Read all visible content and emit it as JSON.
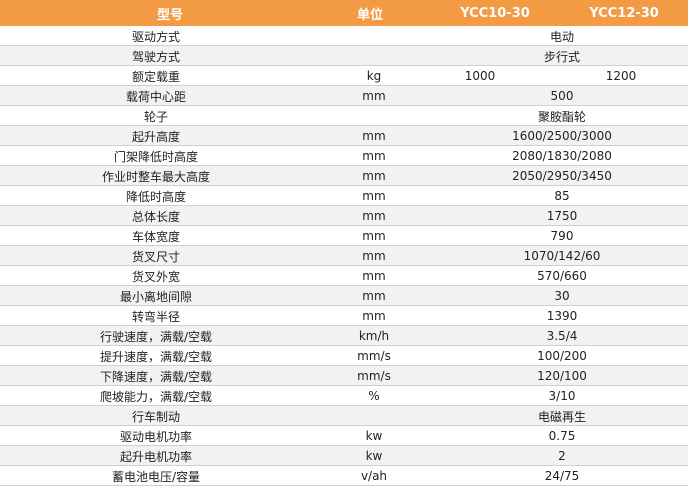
{
  "header": {
    "name_label": "型号",
    "unit_label": "单位",
    "model_a": "YCC10-30",
    "model_b": "YCC12-30"
  },
  "rows": [
    {
      "name": "驱动方式",
      "unit": "",
      "value": "电动"
    },
    {
      "name": "驾驶方式",
      "unit": "",
      "value": "步行式"
    },
    {
      "name": "额定载重",
      "unit": "kg",
      "value_a": "1000",
      "value_b": "1200"
    },
    {
      "name": "载荷中心距",
      "unit": "mm",
      "value": "500"
    },
    {
      "name": "轮子",
      "unit": "",
      "value": "聚胺酯轮"
    },
    {
      "name": "起升高度",
      "unit": "mm",
      "value": "1600/2500/3000"
    },
    {
      "name": "门架降低时高度",
      "unit": "mm",
      "value": "2080/1830/2080"
    },
    {
      "name": "作业时整车最大高度",
      "unit": "mm",
      "value": "2050/2950/3450"
    },
    {
      "name": "降低时高度",
      "unit": "mm",
      "value": "85"
    },
    {
      "name": "总体长度",
      "unit": "mm",
      "value": "1750"
    },
    {
      "name": "车体宽度",
      "unit": "mm",
      "value": "790"
    },
    {
      "name": "货叉尺寸",
      "unit": "mm",
      "value": "1070/142/60"
    },
    {
      "name": "货叉外宽",
      "unit": "mm",
      "value": "570/660"
    },
    {
      "name": "最小离地间隙",
      "unit": "mm",
      "value": "30"
    },
    {
      "name": "转弯半径",
      "unit": "mm",
      "value": "1390"
    },
    {
      "name": "行驶速度，满载/空载",
      "unit": "km/h",
      "value": "3.5/4"
    },
    {
      "name": "提升速度，满载/空载",
      "unit": "mm/s",
      "value": "100/200"
    },
    {
      "name": "下降速度，满载/空载",
      "unit": "mm/s",
      "value": "120/100"
    },
    {
      "name": "爬坡能力，满载/空载",
      "unit": "%",
      "value": "3/10"
    },
    {
      "name": "行车制动",
      "unit": "",
      "value": "电磁再生"
    },
    {
      "name": "驱动电机功率",
      "unit": "kw",
      "value": "0.75"
    },
    {
      "name": "起升电机功率",
      "unit": "kw",
      "value": "2"
    },
    {
      "name": "蓄电池电压/容量",
      "unit": "v/ah",
      "value": "24/75"
    }
  ],
  "colors": {
    "header_bg": "#f39a45",
    "header_text": "#ffffff",
    "row_alt_bg": "#f2f2f2",
    "grid_line": "#d0d0d0"
  }
}
